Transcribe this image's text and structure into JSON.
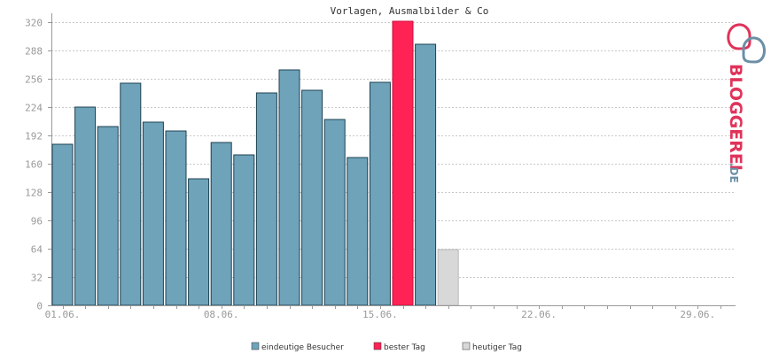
{
  "chart_data": {
    "type": "bar",
    "title": "Vorlagen, Ausmalbilder & Co",
    "xlabel": "",
    "ylabel": "",
    "ylim": [
      0,
      330
    ],
    "y_ticks": [
      0,
      32,
      64,
      96,
      128,
      160,
      192,
      224,
      256,
      288,
      320
    ],
    "x_tick_labels": [
      "01.06.",
      "08.06.",
      "15.06.",
      "22.06.",
      "29.06."
    ],
    "x_tick_days": [
      1,
      8,
      15,
      22,
      29
    ],
    "days_in_range": 30,
    "grid": true,
    "series": [
      {
        "name": "eindeutige Besucher",
        "color": "#6ea3ba",
        "values": [
          182,
          224,
          202,
          251,
          207,
          197,
          143,
          184,
          170,
          240,
          266,
          243,
          210,
          167,
          252,
          321,
          295,
          63
        ]
      }
    ],
    "best_day_index": 15,
    "today_index": 17,
    "colors": {
      "visitors": "#6ea3ba",
      "best": "#ff2255",
      "today": "#d8d8d8",
      "bar_stroke": "#1e4050"
    },
    "legend": [
      {
        "label": "eindeutige Besucher",
        "color": "#6ea3ba"
      },
      {
        "label": "bester Tag",
        "color": "#ff2255"
      },
      {
        "label": "heutiger Tag",
        "color": "#d8d8d8"
      }
    ],
    "legend_position": "bottom"
  },
  "logo": {
    "text": "BLOGGEREI",
    "suffix": ".DE"
  }
}
